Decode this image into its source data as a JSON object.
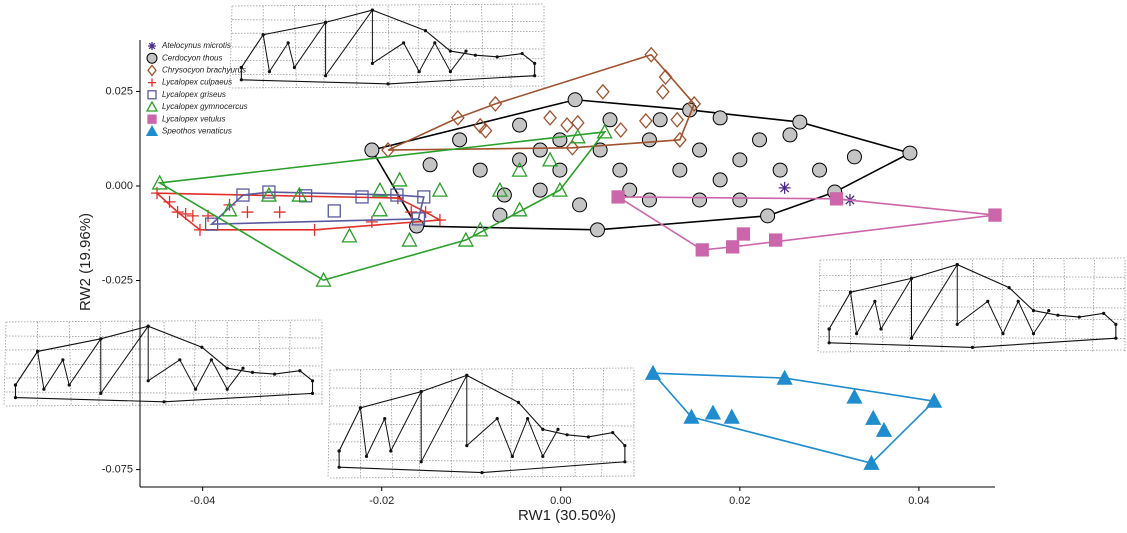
{
  "chart_data": {
    "type": "scatter",
    "xlabel": "RW1 (30.50%)",
    "ylabel": "RW2 (19.96%)",
    "xlim": [
      -0.047,
      0.0485
    ],
    "ylim": [
      -0.0796,
      0.0386
    ],
    "xticks": [
      -0.04,
      -0.02,
      {
        "value": 0,
        "label": "0.00"
      },
      0.02,
      0.04
    ],
    "yticks": [
      0.025,
      {
        "value": 0,
        "label": "0.000"
      },
      -0.025,
      -0.075
    ],
    "hulls": true,
    "series": [
      {
        "name": "Atelocynus microtis",
        "color": "#4b2a8a",
        "marker": "asterisk",
        "filled": false,
        "x": [
          0.025,
          0.0323
        ],
        "values": [
          -0.0005,
          -0.0037
        ]
      },
      {
        "name": "Cerdocyon thous",
        "color": "#000000",
        "fill": "#c4c4c4",
        "marker": "circle",
        "filled": true,
        "x": [
          -0.0211,
          -0.0161,
          0.0041,
          0.0231,
          0.039,
          0.0267,
          0.0178,
          0.0144,
          0.0016,
          -0.0046,
          -0.0113,
          -0.0146,
          -0.0068,
          -0.0023,
          -0.0001,
          0.0044,
          0.0066,
          0.0099,
          0.0133,
          0.0155,
          0.0178,
          0.02,
          0.0222,
          0.0245,
          0.0289,
          0.0328,
          0.0306,
          0.0099,
          0.0155,
          0.02,
          0.0021,
          0.0077,
          -0.009,
          -0.0046,
          -0.0001,
          0.0111,
          -0.0023,
          0.0055,
          -0.0063,
          0.0256
        ],
        "values": [
          0.0095,
          -0.0106,
          -0.0116,
          -0.0079,
          0.0087,
          0.0169,
          0.018,
          0.0201,
          0.0228,
          0.0161,
          0.0122,
          0.0056,
          -0.0077,
          -0.0011,
          0.0042,
          0.0095,
          0.0042,
          0.0122,
          0.0042,
          0.0095,
          0.0016,
          0.0069,
          0.0122,
          0.0042,
          0.0042,
          0.0077,
          -0.0016,
          -0.0037,
          -0.0037,
          -0.0037,
          -0.005,
          -0.0011,
          0.0042,
          0.0069,
          0.0122,
          0.0175,
          0.0095,
          0.0175,
          -0.0024,
          0.0135
        ]
      },
      {
        "name": "Chrysocyon brachyurus",
        "color": "#a0522d",
        "marker": "diamond",
        "filled": false,
        "x": [
          0.0101,
          -0.0193,
          -0.0115,
          -0.0073,
          -0.0084,
          -0.009,
          -0.0012,
          0.0007,
          0.0019,
          0.0047,
          0.0114,
          0.0117,
          0.0149,
          0.0133,
          0.013,
          0.0095,
          0.0067,
          0.0013
        ],
        "values": [
          0.0347,
          0.0095,
          0.018,
          0.0217,
          0.0146,
          0.0159,
          0.018,
          0.0161,
          0.0167,
          0.0249,
          0.0249,
          0.0288,
          0.0217,
          0.0122,
          0.0175,
          0.0172,
          0.0148,
          0.0101
        ]
      },
      {
        "name": "Lycalopex culpaeus",
        "color": "#e0302a",
        "marker": "plus",
        "filled": false,
        "x": [
          -0.0451,
          -0.0437,
          -0.0428,
          -0.0419,
          -0.0411,
          -0.0403,
          -0.037,
          -0.035,
          -0.0314,
          -0.0275,
          -0.0211,
          -0.0182,
          -0.0167,
          -0.0135,
          -0.0151,
          -0.0394
        ],
        "values": [
          -0.0019,
          -0.0042,
          -0.0069,
          -0.0074,
          -0.0079,
          -0.0116,
          -0.005,
          -0.0069,
          -0.0069,
          -0.0116,
          -0.0095,
          -0.0032,
          -0.0069,
          -0.009,
          -0.0069,
          -0.0079
        ]
      },
      {
        "name": "Lycalopex griseus",
        "color": "#5a5aa0",
        "marker": "square",
        "filled": false,
        "x": [
          -0.039,
          -0.0355,
          -0.0326,
          -0.0285,
          -0.0253,
          -0.0222,
          -0.0183,
          -0.0153,
          -0.0159
        ],
        "values": [
          -0.0101,
          -0.0024,
          -0.0016,
          -0.0026,
          -0.0066,
          -0.0029,
          -0.0024,
          -0.0029,
          -0.0087
        ]
      },
      {
        "name": "Lycalopex gymnocercus",
        "color": "#2aa02a",
        "marker": "triangle",
        "filled": false,
        "x": [
          -0.0448,
          -0.0265,
          0.0019,
          0.0049,
          -0.0106,
          -0.0169,
          -0.0236,
          -0.0326,
          -0.037,
          -0.0292,
          -0.0202,
          -0.018,
          -0.0135,
          -0.0068,
          -0.0046,
          -0.0012,
          -0.0001,
          -0.0046,
          -0.009,
          -0.0202
        ],
        "values": [
          0.0008,
          -0.0249,
          0.013,
          0.0143,
          -0.0143,
          -0.0143,
          -0.0132,
          -0.0024,
          -0.0063,
          -0.0024,
          -0.0011,
          0.0016,
          -0.0011,
          -0.0011,
          0.0042,
          0.0069,
          -0.0011,
          -0.0063,
          -0.0116,
          -0.0063
        ]
      },
      {
        "name": "Lycalopex vetulus",
        "color": "#cc66aa",
        "marker": "square",
        "filled": true,
        "x": [
          0.0064,
          0.0485,
          0.0308,
          0.0158,
          0.0192,
          0.0204,
          0.024
        ],
        "values": [
          -0.0029,
          -0.0077,
          -0.0034,
          -0.0169,
          -0.0161,
          -0.0127,
          -0.0143
        ]
      },
      {
        "name": "Speothos venaticus",
        "color": "#1e8ccd",
        "marker": "triangle",
        "filled": true,
        "x": [
          0.0103,
          0.025,
          0.0417,
          0.0328,
          0.0349,
          0.0361,
          0.0347,
          0.0146,
          0.017,
          0.0191
        ],
        "values": [
          -0.0495,
          -0.0508,
          -0.0569,
          -0.0558,
          -0.0614,
          -0.0646,
          -0.0733,
          -0.0611,
          -0.06,
          -0.0611
        ]
      }
    ]
  }
}
